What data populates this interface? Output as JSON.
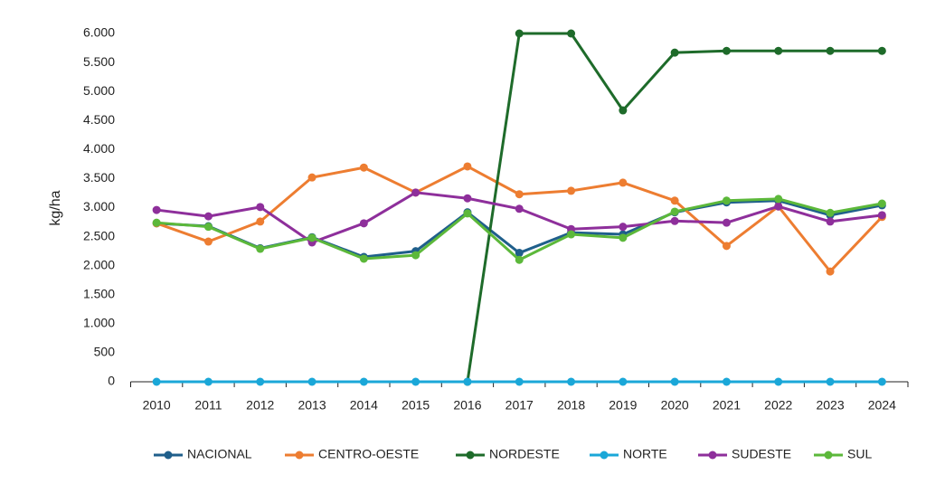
{
  "chart_data": {
    "type": "line",
    "y_label": "kg/ha",
    "categories": [
      "2010",
      "2011",
      "2012",
      "2013",
      "2014",
      "2015",
      "2016",
      "2017",
      "2018",
      "2019",
      "2020",
      "2021",
      "2022",
      "2023",
      "2024"
    ],
    "ylim": [
      0,
      6000
    ],
    "yticks": [
      0,
      500,
      {
        "value": 1000,
        "label": "1.000"
      },
      {
        "value": 1500,
        "label": "1.500"
      },
      {
        "value": 2000,
        "label": "2.000"
      },
      {
        "value": 2500,
        "label": "2.500"
      },
      {
        "value": 3000,
        "label": "3.000"
      },
      {
        "value": 3500,
        "label": "3.500"
      },
      {
        "value": 4000,
        "label": "4.000"
      },
      {
        "value": 4500,
        "label": "4.500"
      },
      {
        "value": 5000,
        "label": "5.000"
      },
      {
        "value": 5500,
        "label": "5.500"
      },
      {
        "value": 6000,
        "label": "6.000"
      }
    ],
    "grid": false,
    "legend": "bottom",
    "series": [
      {
        "name": "NACIONAL",
        "color": "#1f5f8b",
        "values": [
          2730,
          2680,
          2300,
          2490,
          2150,
          2250,
          2920,
          2220,
          2570,
          2540,
          2920,
          3090,
          3120,
          2870,
          3040
        ]
      },
      {
        "name": "CENTRO-OESTE",
        "color": "#ed7d31",
        "values": [
          2730,
          2415,
          2760,
          3520,
          3690,
          3260,
          3710,
          3230,
          3290,
          3430,
          3120,
          2340,
          3020,
          1900,
          2840
        ]
      },
      {
        "name": "NORDESTE",
        "color": "#1e6b2a",
        "values": [
          null,
          null,
          null,
          null,
          null,
          null,
          0,
          6000,
          6000,
          4675,
          5670,
          5700,
          5700,
          5700,
          5700
        ]
      },
      {
        "name": "NORTE",
        "color": "#1aa7d8",
        "values": [
          0,
          0,
          0,
          0,
          0,
          0,
          0,
          0,
          0,
          0,
          0,
          0,
          0,
          0,
          0
        ]
      },
      {
        "name": "SUDESTE",
        "color": "#8e2f9b",
        "values": [
          2960,
          2850,
          3010,
          2400,
          2730,
          3260,
          3160,
          2980,
          2630,
          2670,
          2770,
          2740,
          3020,
          2760,
          2870
        ]
      },
      {
        "name": "SUL",
        "color": "#5cb83a",
        "values": [
          2740,
          2670,
          2290,
          2480,
          2120,
          2180,
          2900,
          2100,
          2540,
          2480,
          2930,
          3120,
          3150,
          2910,
          3070
        ]
      }
    ]
  }
}
